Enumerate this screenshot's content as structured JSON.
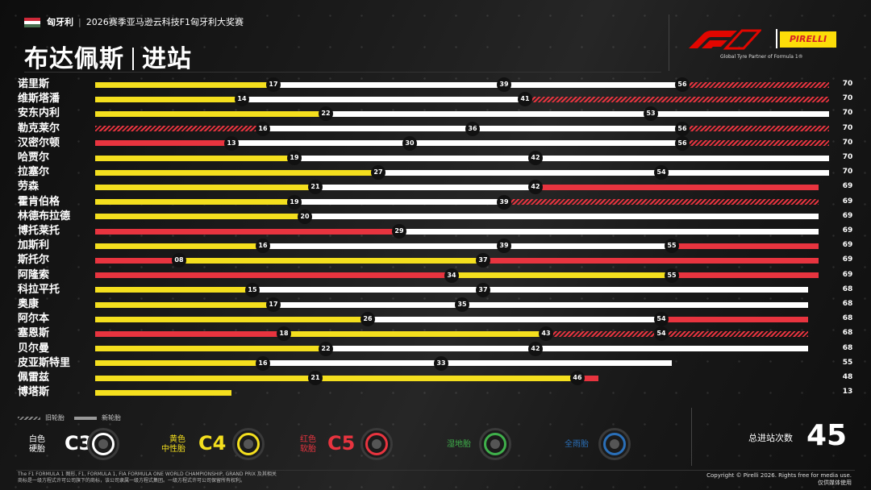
{
  "header": {
    "country": "匈牙利",
    "event": "2026赛季亚马逊云科技F1匈牙利大奖赛",
    "title_city": "布达佩斯",
    "title_topic": "进站",
    "partner_text": "Global Tyre Partner of Formula 1®",
    "pirelli": "PIRELLI"
  },
  "colors": {
    "hard_white": "#ffffff",
    "medium_yellow": "#F4DF1E",
    "soft_red": "#E8343F",
    "inter_green": "#3fb04b",
    "wet_blue": "#2a6fb8"
  },
  "chart_data": {
    "type": "bar",
    "x_axis": "laps",
    "max_lap": 70,
    "drivers": [
      {
        "name": "诺里斯",
        "total": "70",
        "stints": [
          {
            "c": "Y",
            "u": false,
            "end": 17
          },
          {
            "c": "W",
            "u": false,
            "end": 39
          },
          {
            "c": "W",
            "u": false,
            "end": 56
          },
          {
            "c": "R",
            "u": true,
            "end": 70
          }
        ]
      },
      {
        "name": "维斯塔潘",
        "total": "70",
        "stints": [
          {
            "c": "Y",
            "u": false,
            "end": 14
          },
          {
            "c": "W",
            "u": false,
            "end": 41
          },
          {
            "c": "R",
            "u": true,
            "end": 70
          }
        ]
      },
      {
        "name": "安东内利",
        "total": "70",
        "stints": [
          {
            "c": "Y",
            "u": false,
            "end": 22
          },
          {
            "c": "W",
            "u": false,
            "end": 53
          },
          {
            "c": "W",
            "u": false,
            "end": 70
          }
        ]
      },
      {
        "name": "勒克莱尔",
        "total": "70",
        "stints": [
          {
            "c": "R",
            "u": true,
            "end": 16
          },
          {
            "c": "W",
            "u": false,
            "end": 36
          },
          {
            "c": "W",
            "u": false,
            "end": 56
          },
          {
            "c": "R",
            "u": true,
            "end": 70
          }
        ]
      },
      {
        "name": "汉密尔顿",
        "total": "70",
        "stints": [
          {
            "c": "R",
            "u": false,
            "end": 13
          },
          {
            "c": "W",
            "u": false,
            "end": 30
          },
          {
            "c": "W",
            "u": false,
            "end": 56
          },
          {
            "c": "R",
            "u": true,
            "end": 70
          }
        ]
      },
      {
        "name": "哈贾尔",
        "total": "70",
        "stints": [
          {
            "c": "Y",
            "u": false,
            "end": 19
          },
          {
            "c": "W",
            "u": false,
            "end": 42
          },
          {
            "c": "W",
            "u": false,
            "end": 70
          }
        ]
      },
      {
        "name": "拉塞尔",
        "total": "70",
        "stints": [
          {
            "c": "Y",
            "u": false,
            "end": 27
          },
          {
            "c": "W",
            "u": false,
            "end": 54
          },
          {
            "c": "W",
            "u": false,
            "end": 70
          }
        ]
      },
      {
        "name": "劳森",
        "total": "69",
        "stints": [
          {
            "c": "Y",
            "u": false,
            "end": 21
          },
          {
            "c": "W",
            "u": false,
            "end": 42
          },
          {
            "c": "R",
            "u": false,
            "end": 69
          }
        ]
      },
      {
        "name": "霍肯伯格",
        "total": "69",
        "stints": [
          {
            "c": "Y",
            "u": false,
            "end": 19
          },
          {
            "c": "W",
            "u": false,
            "end": 39
          },
          {
            "c": "R",
            "u": true,
            "end": 69
          }
        ]
      },
      {
        "name": "林德布拉德",
        "total": "69",
        "stints": [
          {
            "c": "Y",
            "u": false,
            "end": 20
          },
          {
            "c": "W",
            "u": false,
            "end": 69
          }
        ]
      },
      {
        "name": "博托莱托",
        "total": "69",
        "stints": [
          {
            "c": "R",
            "u": false,
            "end": 29
          },
          {
            "c": "W",
            "u": false,
            "end": 69
          }
        ]
      },
      {
        "name": "加斯利",
        "total": "69",
        "stints": [
          {
            "c": "Y",
            "u": false,
            "end": 16
          },
          {
            "c": "W",
            "u": false,
            "end": 39
          },
          {
            "c": "W",
            "u": false,
            "end": 55
          },
          {
            "c": "R",
            "u": false,
            "end": 69
          }
        ]
      },
      {
        "name": "斯托尔",
        "total": "69",
        "stints": [
          {
            "c": "R",
            "u": false,
            "end": 8,
            "label": "08"
          },
          {
            "c": "Y",
            "u": false,
            "end": 37
          },
          {
            "c": "R",
            "u": false,
            "end": 69
          }
        ]
      },
      {
        "name": "阿隆索",
        "total": "69",
        "stints": [
          {
            "c": "R",
            "u": false,
            "end": 34
          },
          {
            "c": "Y",
            "u": false,
            "end": 55
          },
          {
            "c": "R",
            "u": false,
            "end": 69
          }
        ]
      },
      {
        "name": "科拉平托",
        "total": "68",
        "stints": [
          {
            "c": "Y",
            "u": false,
            "end": 15
          },
          {
            "c": "W",
            "u": false,
            "end": 37
          },
          {
            "c": "W",
            "u": false,
            "end": 68
          }
        ]
      },
      {
        "name": "奥康",
        "total": "68",
        "stints": [
          {
            "c": "Y",
            "u": false,
            "end": 17
          },
          {
            "c": "W",
            "u": false,
            "end": 35
          },
          {
            "c": "W",
            "u": false,
            "end": 68
          }
        ]
      },
      {
        "name": "阿尔本",
        "total": "68",
        "stints": [
          {
            "c": "Y",
            "u": false,
            "end": 26
          },
          {
            "c": "W",
            "u": false,
            "end": 54
          },
          {
            "c": "R",
            "u": false,
            "end": 68
          }
        ]
      },
      {
        "name": "塞恩斯",
        "total": "68",
        "stints": [
          {
            "c": "R",
            "u": false,
            "end": 18
          },
          {
            "c": "Y",
            "u": false,
            "end": 43
          },
          {
            "c": "R",
            "u": true,
            "end": 54
          },
          {
            "c": "R",
            "u": true,
            "end": 68
          }
        ]
      },
      {
        "name": "贝尔曼",
        "total": "68",
        "stints": [
          {
            "c": "Y",
            "u": false,
            "end": 22
          },
          {
            "c": "W",
            "u": false,
            "end": 42
          },
          {
            "c": "W",
            "u": false,
            "end": 68
          }
        ]
      },
      {
        "name": "皮亚斯特里",
        "total": "55",
        "stints": [
          {
            "c": "Y",
            "u": false,
            "end": 16
          },
          {
            "c": "W",
            "u": false,
            "end": 33
          },
          {
            "c": "W",
            "u": false,
            "end": 55
          }
        ]
      },
      {
        "name": "佩雷兹",
        "total": "48",
        "stints": [
          {
            "c": "Y",
            "u": false,
            "end": 21
          },
          {
            "c": "Y",
            "u": false,
            "end": 46
          },
          {
            "c": "R",
            "u": false,
            "end": 48
          }
        ]
      },
      {
        "name": "博塔斯",
        "total": "13",
        "stints": [
          {
            "c": "Y",
            "u": false,
            "end": 13
          }
        ]
      }
    ]
  },
  "legend": {
    "used": "旧轮胎",
    "new": "新轮胎"
  },
  "compounds": [
    {
      "label_line1": "白色",
      "label_line2": "硬胎",
      "code": "C3",
      "color": "#ffffff"
    },
    {
      "label_line1": "黄色",
      "label_line2": "中性胎",
      "code": "C4",
      "color": "#F4DF1E"
    },
    {
      "label_line1": "红色",
      "label_line2": "软胎",
      "code": "C5",
      "color": "#E8343F"
    },
    {
      "label_line1": "湿地胎",
      "label_line2": "",
      "code": "",
      "color": "#3fb04b"
    },
    {
      "label_line1": "全雨胎",
      "label_line2": "",
      "code": "",
      "color": "#2a6fb8"
    }
  ],
  "stops": {
    "label": "总进站次数",
    "value": "45"
  },
  "footer": {
    "note_line1": "The F1 FORMULA 1 图形, F1, FORMULA 1, FIA FORMULA ONE WORLD CHAMPIONSHIP, GRAND PRIX 及其相关",
    "note_line2": "商标是一级方程式许可公司旗下的商标，该公司隶属一级方程式集团。一级方程式许可公司保留所有权利。",
    "copyright_line1": "Copyright © Pirelli 2026. Rights free for media use.",
    "copyright_line2": "仅供媒体使用"
  }
}
